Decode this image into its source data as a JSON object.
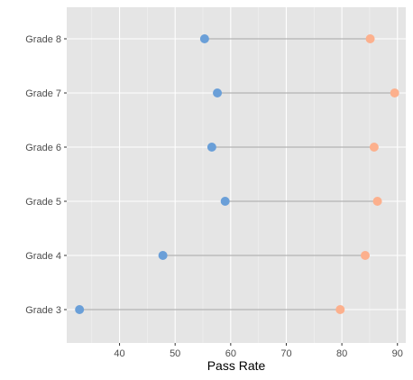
{
  "chart_data": {
    "type": "dumbbell",
    "xlabel": "Pass Rate",
    "ylabel": "",
    "xlim": [
      30.5,
      91.5
    ],
    "x_ticks": [
      40,
      50,
      60,
      70,
      80,
      90
    ],
    "categories": [
      "Grade 3",
      "Grade 4",
      "Grade 5",
      "Grade 6",
      "Grade 7",
      "Grade 8"
    ],
    "series": [
      {
        "color": "#6a9fd8",
        "values": [
          32.8,
          47.8,
          59.0,
          56.6,
          57.6,
          55.3
        ]
      },
      {
        "color": "#fcb08d",
        "values": [
          79.7,
          84.2,
          86.4,
          85.8,
          89.5,
          85.1
        ]
      }
    ],
    "connector_color": "#b3b3b3",
    "panel_background": "#e5e5e5",
    "grid": true,
    "legend": "none"
  }
}
